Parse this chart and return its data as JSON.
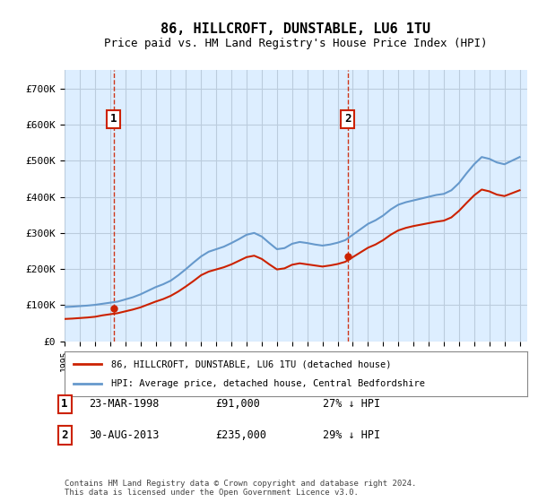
{
  "title": "86, HILLCROFT, DUNSTABLE, LU6 1TU",
  "subtitle": "Price paid vs. HM Land Registry's House Price Index (HPI)",
  "background_color": "#ddeeff",
  "plot_bg_color": "#ddeeff",
  "ylim": [
    0,
    750000
  ],
  "yticks": [
    0,
    100000,
    200000,
    300000,
    400000,
    500000,
    600000,
    700000
  ],
  "ytick_labels": [
    "£0",
    "£100K",
    "£200K",
    "£300K",
    "£400K",
    "£500K",
    "£600K",
    "£700K"
  ],
  "xstart": 1995.0,
  "xend": 2025.5,
  "sale_dates": [
    1998.23,
    2013.66
  ],
  "sale_prices": [
    91000,
    235000
  ],
  "sale_labels": [
    "1",
    "2"
  ],
  "hpi_color": "#6699cc",
  "price_color": "#cc2200",
  "vline_color": "#cc2200",
  "grid_color": "#bbccdd",
  "legend_label_price": "86, HILLCROFT, DUNSTABLE, LU6 1TU (detached house)",
  "legend_label_hpi": "HPI: Average price, detached house, Central Bedfordshire",
  "annotation_rows": [
    {
      "label": "1",
      "date": "23-MAR-1998",
      "price": "£91,000",
      "note": "27% ↓ HPI"
    },
    {
      "label": "2",
      "date": "30-AUG-2013",
      "price": "£235,000",
      "note": "29% ↓ HPI"
    }
  ],
  "footer": "Contains HM Land Registry data © Crown copyright and database right 2024.\nThis data is licensed under the Open Government Licence v3.0.",
  "hpi_years": [
    1995,
    1995.5,
    1996,
    1996.5,
    1997,
    1997.5,
    1998,
    1998.5,
    1999,
    1999.5,
    2000,
    2000.5,
    2001,
    2001.5,
    2002,
    2002.5,
    2003,
    2003.5,
    2004,
    2004.5,
    2005,
    2005.5,
    2006,
    2006.5,
    2007,
    2007.5,
    2008,
    2008.5,
    2009,
    2009.5,
    2010,
    2010.5,
    2011,
    2011.5,
    2012,
    2012.5,
    2013,
    2013.5,
    2014,
    2014.5,
    2015,
    2015.5,
    2016,
    2016.5,
    2017,
    2017.5,
    2018,
    2018.5,
    2019,
    2019.5,
    2020,
    2020.5,
    2021,
    2021.5,
    2022,
    2022.5,
    2023,
    2023.5,
    2024,
    2024.5,
    2025
  ],
  "hpi_values": [
    95000,
    96000,
    97500,
    99000,
    101000,
    104000,
    107000,
    110000,
    116000,
    122000,
    130000,
    140000,
    150000,
    158000,
    168000,
    183000,
    200000,
    218000,
    235000,
    248000,
    255000,
    262000,
    272000,
    283000,
    295000,
    300000,
    290000,
    272000,
    255000,
    258000,
    270000,
    275000,
    272000,
    268000,
    265000,
    268000,
    273000,
    280000,
    295000,
    310000,
    325000,
    335000,
    348000,
    365000,
    378000,
    385000,
    390000,
    395000,
    400000,
    405000,
    408000,
    418000,
    438000,
    465000,
    490000,
    510000,
    505000,
    495000,
    490000,
    500000,
    510000
  ],
  "price_years": [
    1995,
    1995.5,
    1996,
    1996.5,
    1997,
    1997.5,
    1998,
    1998.5,
    1999,
    1999.5,
    2000,
    2000.5,
    2001,
    2001.5,
    2002,
    2002.5,
    2003,
    2003.5,
    2004,
    2004.5,
    2005,
    2005.5,
    2006,
    2006.5,
    2007,
    2007.5,
    2008,
    2008.5,
    2009,
    2009.5,
    2010,
    2010.5,
    2011,
    2011.5,
    2012,
    2012.5,
    2013,
    2013.5,
    2014,
    2014.5,
    2015,
    2015.5,
    2016,
    2016.5,
    2017,
    2017.5,
    2018,
    2018.5,
    2019,
    2019.5,
    2020,
    2020.5,
    2021,
    2021.5,
    2022,
    2022.5,
    2023,
    2023.5,
    2024,
    2024.5,
    2025
  ],
  "price_values": [
    62000,
    63000,
    64500,
    66000,
    68000,
    72000,
    75000,
    78000,
    83000,
    88000,
    94000,
    102000,
    110000,
    117000,
    126000,
    138000,
    152000,
    167000,
    183000,
    193000,
    199000,
    205000,
    213000,
    223000,
    233000,
    237000,
    228000,
    213000,
    199000,
    202000,
    212000,
    216000,
    213000,
    210000,
    207000,
    210000,
    214000,
    220000,
    233000,
    246000,
    259000,
    268000,
    280000,
    295000,
    307000,
    314000,
    319000,
    323000,
    327000,
    331000,
    334000,
    343000,
    361000,
    383000,
    404000,
    420000,
    415000,
    406000,
    402000,
    410000,
    418000
  ]
}
